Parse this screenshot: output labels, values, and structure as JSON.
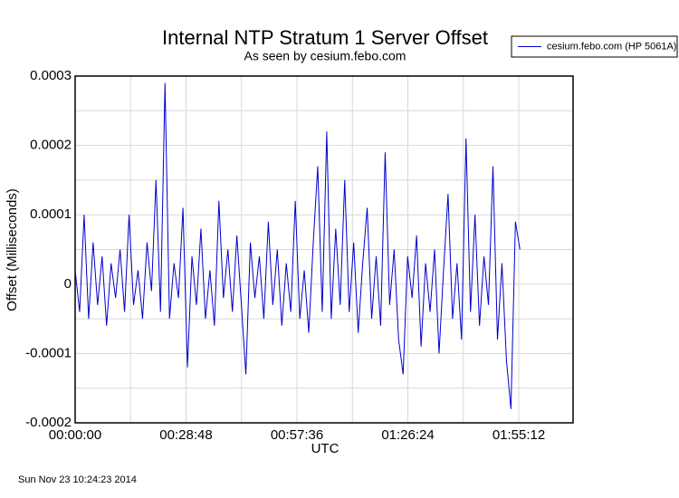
{
  "chart_data": {
    "type": "line",
    "title": "Internal NTP Stratum 1 Server Offset",
    "subtitle": "As seen by cesium.febo.com",
    "x_label": "UTC",
    "y_label": "Offset (Milliseconds)",
    "footer": "Sun Nov 23 10:24:23 2014",
    "xlim": [
      0,
      7758
    ],
    "xticks": [
      {
        "value": 0,
        "label": "00:00:00"
      },
      {
        "value": 1728,
        "label": "00:28:48"
      },
      {
        "value": 3456,
        "label": "00:57:36"
      },
      {
        "value": 5184,
        "label": "01:26:24"
      },
      {
        "value": 6912,
        "label": "01:55:12"
      }
    ],
    "xminorticks": [
      864,
      2592,
      4320,
      6048
    ],
    "ylim": [
      -0.0002,
      0.0003
    ],
    "yticks": [
      -0.0002,
      -0.0001,
      0,
      0.0001,
      0.0002,
      0.0003
    ],
    "yminorticks": [
      -0.00015,
      -5e-05,
      5e-05,
      0.00015,
      0.00025
    ],
    "grid": true,
    "legend": "top-right",
    "series": [
      {
        "name": "cesium.febo.com (HP 5061A)",
        "color": "#0000cc",
        "x": [
          0,
          70,
          140,
          210,
          280,
          350,
          420,
          490,
          560,
          630,
          700,
          770,
          840,
          910,
          980,
          1050,
          1120,
          1190,
          1260,
          1330,
          1400,
          1470,
          1540,
          1610,
          1680,
          1750,
          1820,
          1890,
          1960,
          2030,
          2100,
          2170,
          2240,
          2310,
          2380,
          2450,
          2520,
          2590,
          2660,
          2730,
          2800,
          2870,
          2940,
          3010,
          3080,
          3150,
          3220,
          3290,
          3360,
          3430,
          3500,
          3570,
          3640,
          3710,
          3780,
          3850,
          3920,
          3990,
          4060,
          4130,
          4200,
          4270,
          4340,
          4410,
          4480,
          4550,
          4620,
          4690,
          4760,
          4830,
          4900,
          4970,
          5040,
          5110,
          5180,
          5250,
          5320,
          5390,
          5460,
          5530,
          5600,
          5670,
          5740,
          5810,
          5880,
          5950,
          6020,
          6090,
          6160,
          6230,
          6300,
          6370,
          6440,
          6510,
          6580,
          6650,
          6720,
          6790,
          6860,
          6930
        ],
        "values": [
          2e-05,
          -4e-05,
          0.0001,
          -5e-05,
          6e-05,
          -3e-05,
          4e-05,
          -6e-05,
          3e-05,
          -2e-05,
          5e-05,
          -4e-05,
          0.0001,
          -3e-05,
          2e-05,
          -5e-05,
          6e-05,
          -1e-05,
          0.00015,
          -4e-05,
          0.00029,
          -5e-05,
          3e-05,
          -2e-05,
          0.00011,
          -0.00012,
          4e-05,
          -3e-05,
          8e-05,
          -5e-05,
          2e-05,
          -6e-05,
          0.00012,
          -2e-05,
          5e-05,
          -4e-05,
          7e-05,
          -3e-05,
          -0.00013,
          6e-05,
          -2e-05,
          4e-05,
          -5e-05,
          9e-05,
          -3e-05,
          5e-05,
          -6e-05,
          3e-05,
          -4e-05,
          0.00012,
          -5e-05,
          2e-05,
          -7e-05,
          6e-05,
          0.00017,
          -4e-05,
          0.00022,
          -5e-05,
          8e-05,
          -3e-05,
          0.00015,
          -4e-05,
          6e-05,
          -7e-05,
          3e-05,
          0.00011,
          -5e-05,
          4e-05,
          -6e-05,
          0.00019,
          -3e-05,
          5e-05,
          -8e-05,
          -0.00013,
          4e-05,
          -2e-05,
          7e-05,
          -9e-05,
          3e-05,
          -4e-05,
          5e-05,
          -0.0001,
          2e-05,
          0.00013,
          -5e-05,
          3e-05,
          -8e-05,
          0.00021,
          -4e-05,
          0.0001,
          -6e-05,
          4e-05,
          -3e-05,
          0.00017,
          -8e-05,
          3e-05,
          -0.00011,
          -0.00018,
          9e-05,
          5e-05
        ]
      }
    ]
  }
}
